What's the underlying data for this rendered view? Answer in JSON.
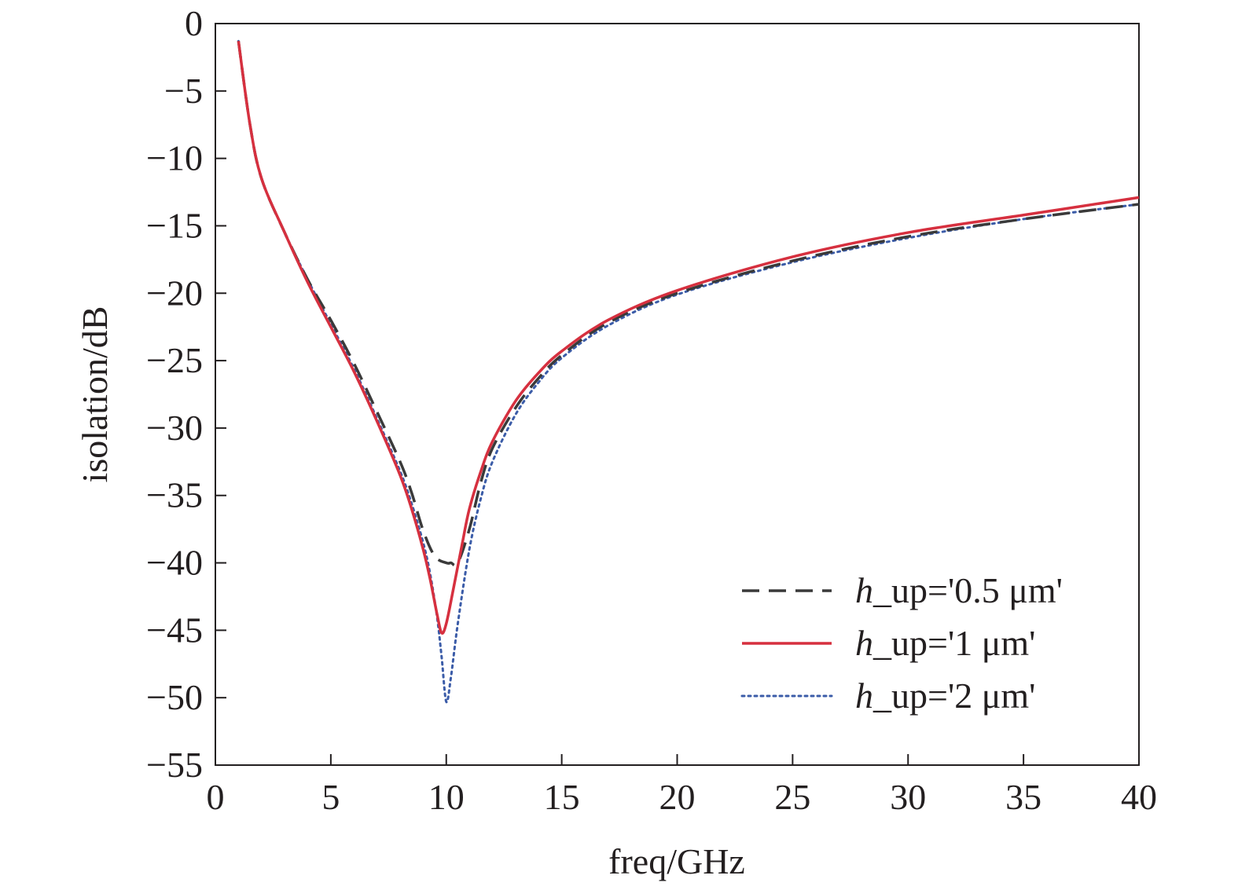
{
  "chart_data": {
    "type": "line",
    "xlabel": "freq/GHz",
    "ylabel": "isolation/dB",
    "xlim": [
      0,
      40
    ],
    "ylim": [
      -55,
      0
    ],
    "xticks": [
      0,
      5,
      10,
      15,
      20,
      25,
      30,
      35,
      40
    ],
    "yticks": [
      0,
      -5,
      -10,
      -15,
      -20,
      -25,
      -30,
      -35,
      -40,
      -45,
      -50,
      -55
    ],
    "xtick_labels": [
      "0",
      "5",
      "10",
      "15",
      "20",
      "25",
      "30",
      "35",
      "40"
    ],
    "ytick_labels": [
      "0",
      "−5",
      "−10",
      "−15",
      "−20",
      "−25",
      "−30",
      "−35",
      "−40",
      "−45",
      "−50",
      "−55"
    ],
    "grid": false,
    "legend_position": "bottom-right",
    "series": [
      {
        "name": "h_up='0.5 μm'",
        "name_italic": "h",
        "name_rest": "_up='0.5 μm'",
        "color": "#3a3a3a",
        "style": "dashed",
        "x": [
          1,
          1.5,
          2,
          3,
          4,
          5,
          6,
          7,
          8,
          8.5,
          9,
          9.5,
          10,
          10.2,
          10.5,
          11,
          11.5,
          12,
          13,
          14,
          15,
          17,
          20,
          25,
          30,
          35,
          40
        ],
        "y": [
          -1.3,
          -7.5,
          -11.5,
          -15.5,
          -19,
          -22,
          -25.2,
          -28.8,
          -32.5,
          -34.8,
          -37.6,
          -39.5,
          -40,
          -40,
          -40,
          -37.5,
          -34,
          -31.5,
          -28.5,
          -26.3,
          -24.6,
          -22.2,
          -20.0,
          -17.6,
          -15.8,
          -14.5,
          -13.4
        ]
      },
      {
        "name": "h_up='1 μm'",
        "name_italic": "h",
        "name_rest": "_up='1 μm'",
        "color": "#d6303f",
        "style": "solid",
        "x": [
          1,
          1.5,
          2,
          3,
          4,
          5,
          6,
          7,
          8,
          8.5,
          9,
          9.3,
          9.6,
          9.8,
          10,
          10.3,
          10.7,
          11,
          11.5,
          12,
          13,
          14,
          15,
          17,
          20,
          25,
          30,
          35,
          40
        ],
        "y": [
          -1.3,
          -7.5,
          -11.5,
          -15.5,
          -19.2,
          -22.5,
          -25.8,
          -29.5,
          -33.5,
          -36,
          -39,
          -41.2,
          -43.8,
          -45.2,
          -44.5,
          -42,
          -38.5,
          -36,
          -33.2,
          -31,
          -28,
          -25.9,
          -24.3,
          -22,
          -19.8,
          -17.3,
          -15.5,
          -14.2,
          -12.9
        ]
      },
      {
        "name": "h_up='2 μm'",
        "name_italic": "h",
        "name_rest": "_up='2 μm'",
        "color": "#3b5ca8",
        "style": "dotted",
        "x": [
          1,
          1.5,
          2,
          3,
          4,
          5,
          6,
          7,
          8,
          8.5,
          9,
          9.3,
          9.6,
          9.8,
          10,
          10.2,
          10.5,
          11,
          11.5,
          12,
          13,
          14,
          15,
          17,
          20,
          25,
          30,
          35,
          40
        ],
        "y": [
          -1.3,
          -7.5,
          -11.5,
          -15.5,
          -19,
          -22.3,
          -25.6,
          -29.3,
          -33.2,
          -35.6,
          -38.5,
          -40.8,
          -44,
          -47,
          -50.3,
          -48.5,
          -44.5,
          -39,
          -35.2,
          -32.5,
          -29,
          -26.6,
          -24.8,
          -22.4,
          -20.1,
          -17.7,
          -15.9,
          -14.5,
          -13.4
        ]
      }
    ]
  }
}
